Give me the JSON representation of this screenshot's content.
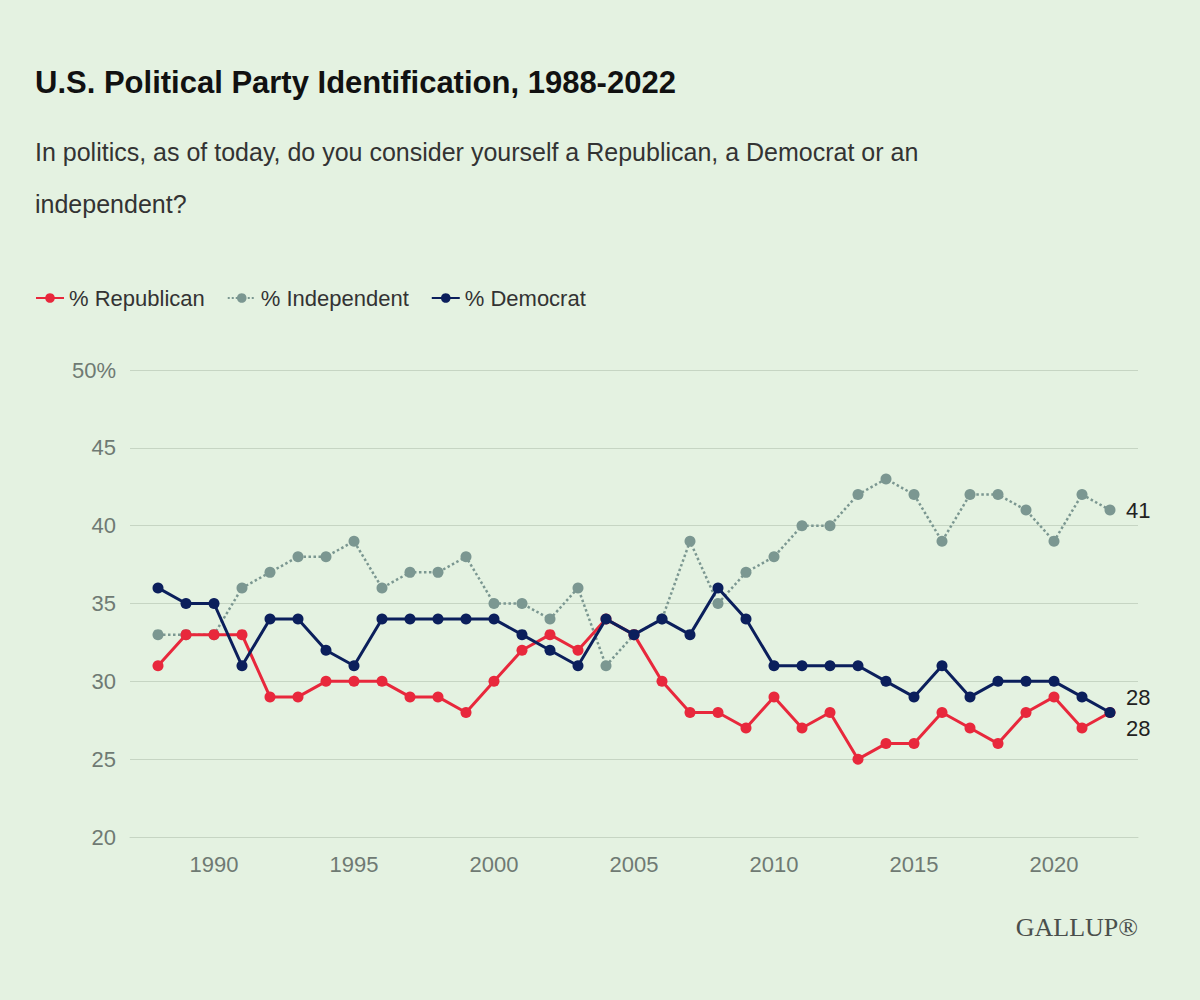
{
  "chart_data": {
    "type": "line",
    "title": "U.S. Political Party Identification, 1988-2022",
    "subtitle": "In politics, as of today, do you consider yourself a Republican, a Democrat or an independent?",
    "source": "GALLUP®",
    "x": [
      1988,
      1989,
      1990,
      1991,
      1992,
      1993,
      1994,
      1995,
      1996,
      1997,
      1998,
      1999,
      2000,
      2001,
      2002,
      2003,
      2004,
      2005,
      2006,
      2007,
      2008,
      2009,
      2010,
      2011,
      2012,
      2013,
      2014,
      2015,
      2016,
      2017,
      2018,
      2019,
      2020,
      2021,
      2022
    ],
    "series": [
      {
        "name": "% Republican",
        "color": "#e8283c",
        "marker": "circle",
        "line_style": "solid",
        "values": [
          31,
          33,
          33,
          33,
          29,
          29,
          30,
          30,
          30,
          29,
          29,
          28,
          30,
          32,
          33,
          32,
          34,
          33,
          30,
          28,
          28,
          27,
          29,
          27,
          28,
          25,
          26,
          26,
          28,
          27,
          26,
          28,
          29,
          27,
          28
        ]
      },
      {
        "name": "% Independent",
        "color": "#7b9791",
        "marker": "circle",
        "line_style": "dotted",
        "values": [
          33,
          33,
          33,
          36,
          37,
          38,
          38,
          39,
          36,
          37,
          37,
          38,
          35,
          35,
          34,
          36,
          31,
          33,
          34,
          39,
          35,
          37,
          38,
          40,
          40,
          42,
          43,
          42,
          39,
          42,
          42,
          41,
          39,
          42,
          41
        ]
      },
      {
        "name": "% Democrat",
        "color": "#0b1f5c",
        "marker": "circle",
        "line_style": "solid",
        "values": [
          36,
          35,
          35,
          31,
          34,
          34,
          32,
          31,
          34,
          34,
          34,
          34,
          34,
          33,
          32,
          31,
          34,
          33,
          34,
          33,
          36,
          34,
          31,
          31,
          31,
          31,
          30,
          29,
          31,
          29,
          30,
          30,
          30,
          29,
          28
        ]
      }
    ],
    "annotations": [
      {
        "text": "41",
        "series": "% Independent",
        "position": "right"
      },
      {
        "text": "28",
        "series": "% Democrat",
        "position": "upper right"
      },
      {
        "text": "28",
        "series": "% Republican",
        "position": "lower right"
      }
    ],
    "xlim": [
      1987,
      2023
    ],
    "xticks": [
      1990,
      1995,
      2000,
      2005,
      2010,
      2015,
      2020
    ],
    "ylim": [
      20,
      50
    ],
    "yticks": [
      20,
      25,
      30,
      35,
      40,
      45,
      {
        "value": 50,
        "label": "50%"
      }
    ],
    "grid": true,
    "legend": "top left"
  }
}
